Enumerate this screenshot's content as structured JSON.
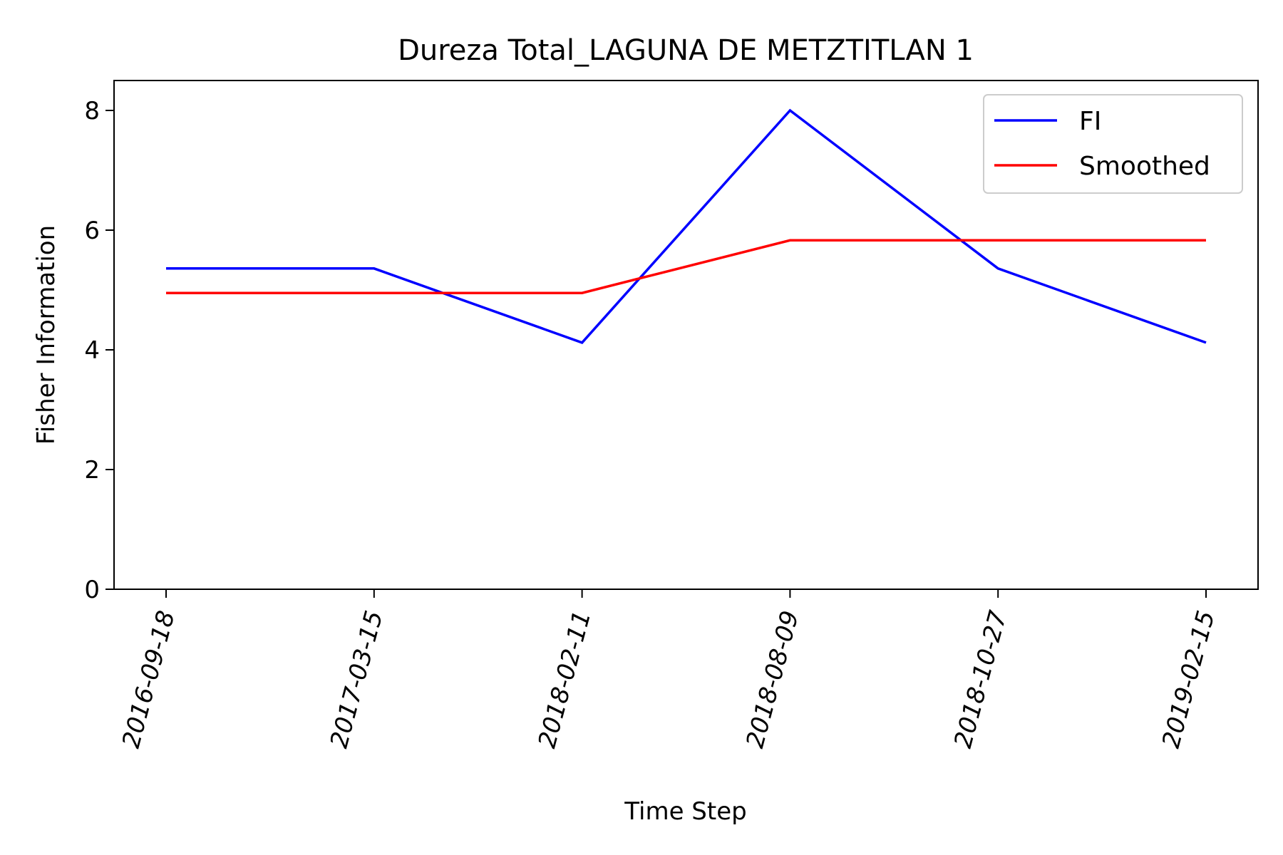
{
  "chart_data": {
    "type": "line",
    "title": "Dureza Total_LAGUNA DE METZTITLAN 1",
    "xlabel": "Time Step",
    "ylabel": "Fisher Information",
    "categories": [
      "2016-09-18",
      "2017-03-15",
      "2018-02-11",
      "2018-08-09",
      "2018-10-27",
      "2019-02-15"
    ],
    "ylim": [
      0,
      8.5
    ],
    "yticks": [
      0,
      2,
      4,
      6,
      8
    ],
    "grid": false,
    "legend_position": "top-right",
    "series": [
      {
        "name": "FI",
        "color": "#0000ff",
        "values": [
          5.36,
          5.36,
          4.12,
          8.0,
          5.36,
          4.12
        ]
      },
      {
        "name": "Smoothed",
        "color": "#ff0000",
        "values": [
          4.95,
          4.95,
          4.95,
          5.83,
          5.83,
          5.83
        ]
      }
    ]
  }
}
